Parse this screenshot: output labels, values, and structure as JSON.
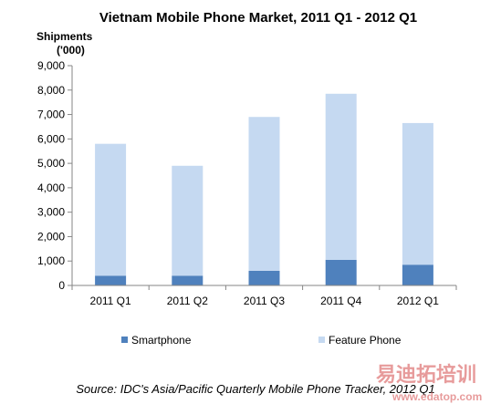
{
  "chart_data": {
    "type": "bar",
    "stacked": true,
    "title": "Vietnam Mobile  Phone Market, 2011 Q1 - 2012 Q1",
    "ylabel_line1": "Shipments",
    "ylabel_line2": "('000)",
    "categories": [
      "2011 Q1",
      "2011 Q2",
      "2011 Q3",
      "2011 Q4",
      "2012 Q1"
    ],
    "series": [
      {
        "name": "Smartphone",
        "color": "#4f81bd",
        "values": [
          400,
          400,
          600,
          1050,
          850
        ]
      },
      {
        "name": "Feature  Phone",
        "color": "#c5d9f1",
        "values": [
          5400,
          4500,
          6300,
          6800,
          5800
        ]
      }
    ],
    "ylim": [
      0,
      9000
    ],
    "yticks": [
      0,
      1000,
      2000,
      3000,
      4000,
      5000,
      6000,
      7000,
      8000,
      9000
    ],
    "ytick_labels": [
      "0",
      "1,000",
      "2,000",
      "3,000",
      "4,000",
      "5,000",
      "6,000",
      "7,000",
      "8,000",
      "9,000"
    ],
    "legend_position": "bottom",
    "grid": false
  },
  "source": "Source: IDC's Asia/Pacific Quarterly Mobile Phone Tracker, 2012 Q1",
  "watermark": {
    "text": "易迪拓培训",
    "url": "www.edatop.com",
    "color": "#e07a7a"
  }
}
